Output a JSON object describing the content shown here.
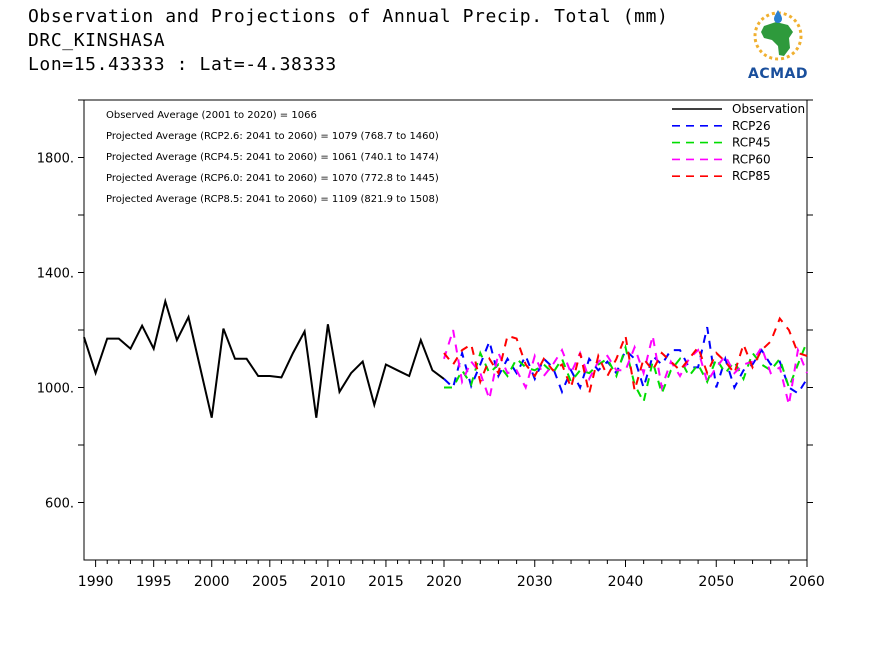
{
  "header": {
    "title": "Observation and Projections of Annual Precip. Total (mm)",
    "location": "DRC_KINSHASA",
    "coords": "Lon=15.43333 : Lat=-4.38333"
  },
  "logo": {
    "text": "ACMAD"
  },
  "annotations": [
    "Observed Average (2001 to 2020) = 1066",
    "Projected Average (RCP2.6: 2041 to 2060) = 1079 (768.7 to 1460)",
    "Projected Average (RCP4.5: 2041 to 2060) = 1061 (740.1 to 1474)",
    "Projected Average (RCP6.0: 2041 to 2060) = 1070 (772.8 to 1445)",
    "Projected Average (RCP8.5: 2041 to 2060) = 1109 (821.9 to 1508)"
  ],
  "chart_data": {
    "type": "line",
    "title": "Observation and Projections of Annual Precip. Total (mm)",
    "xlim": [
      1989,
      2060
    ],
    "ylim": [
      400,
      2000
    ],
    "xticks": [
      1990,
      1995,
      2000,
      2005,
      2010,
      2015,
      2020,
      2030,
      2040,
      2050,
      2060
    ],
    "yticks": [
      600,
      1000,
      1400,
      1800
    ],
    "ytick_labels": [
      "600.",
      "1000.",
      "1400.",
      "1800."
    ],
    "legend_position": "top-right",
    "series": [
      {
        "name": "Observation",
        "color": "#000000",
        "style": "solid",
        "x": [
          1989,
          1990,
          1991,
          1992,
          1993,
          1994,
          1995,
          1996,
          1997,
          1998,
          1999,
          2000,
          2001,
          2002,
          2003,
          2004,
          2005,
          2006,
          2007,
          2008,
          2009,
          2010,
          2011,
          2012,
          2013,
          2014,
          2015,
          2016,
          2017,
          2018,
          2019,
          2020
        ],
        "values": [
          1175,
          1050,
          1170,
          1170,
          1135,
          1215,
          1135,
          1300,
          1165,
          1245,
          1070,
          895,
          1205,
          1100,
          1100,
          1040,
          1040,
          1035,
          1120,
          1195,
          895,
          1220,
          985,
          1050,
          1090,
          940,
          1080,
          1060,
          1040,
          1165,
          1060,
          1030
        ]
      },
      {
        "name": "RCP26",
        "color": "#0000ff",
        "style": "dashed",
        "x": [
          2020,
          2021,
          2022,
          2023,
          2024,
          2025,
          2026,
          2027,
          2028,
          2029,
          2030,
          2031,
          2032,
          2033,
          2034,
          2035,
          2036,
          2037,
          2038,
          2039,
          2040,
          2041,
          2042,
          2043,
          2044,
          2045,
          2046,
          2047,
          2048,
          2049,
          2050,
          2051,
          2052,
          2053,
          2054,
          2055,
          2056,
          2057,
          2058,
          2059,
          2060
        ],
        "values": [
          1030,
          1000,
          1120,
          1005,
          1080,
          1160,
          1040,
          1100,
          1050,
          1110,
          1030,
          1100,
          1070,
          985,
          1060,
          1000,
          1100,
          1060,
          1090,
          1050,
          1130,
          1100,
          1000,
          1110,
          1080,
          1130,
          1130,
          1070,
          1070,
          1210,
          1000,
          1100,
          1000,
          1060,
          1080,
          1130,
          1080,
          1090,
          1000,
          980,
          1030
        ]
      },
      {
        "name": "RCP45",
        "color": "#00dd00",
        "style": "dashed",
        "x": [
          2020,
          2021,
          2022,
          2023,
          2024,
          2025,
          2026,
          2027,
          2028,
          2029,
          2030,
          2031,
          2032,
          2033,
          2034,
          2035,
          2036,
          2037,
          2038,
          2039,
          2040,
          2041,
          2042,
          2043,
          2044,
          2045,
          2046,
          2047,
          2048,
          2049,
          2050,
          2051,
          2052,
          2053,
          2054,
          2055,
          2056,
          2057,
          2058,
          2059,
          2060
        ],
        "values": [
          1000,
          1000,
          1060,
          1010,
          1120,
          1050,
          1080,
          1040,
          1100,
          1070,
          1060,
          1080,
          1050,
          1100,
          1020,
          1060,
          1050,
          1080,
          1100,
          1040,
          1140,
          1010,
          950,
          1090,
          980,
          1060,
          1100,
          1040,
          1080,
          1020,
          1100,
          1050,
          1090,
          1030,
          1120,
          1080,
          1060,
          1100,
          1000,
          1080,
          1160
        ]
      },
      {
        "name": "RCP60",
        "color": "#ff00ff",
        "style": "dashed",
        "x": [
          2020,
          2021,
          2022,
          2023,
          2024,
          2025,
          2026,
          2027,
          2028,
          2029,
          2030,
          2031,
          2032,
          2033,
          2034,
          2035,
          2036,
          2037,
          2038,
          2039,
          2040,
          2041,
          2042,
          2043,
          2044,
          2045,
          2046,
          2047,
          2048,
          2049,
          2050,
          2051,
          2052,
          2053,
          2054,
          2055,
          2056,
          2057,
          2058,
          2059,
          2060
        ],
        "values": [
          1100,
          1200,
          1020,
          1090,
          1050,
          960,
          1120,
          1050,
          1060,
          1000,
          1110,
          1040,
          1080,
          1130,
          1050,
          1120,
          1030,
          1090,
          1110,
          1060,
          1060,
          1140,
          1050,
          1180,
          1000,
          1090,
          1040,
          1100,
          1130,
          1020,
          1070,
          1110,
          1050,
          1080,
          1090,
          1140,
          1050,
          1070,
          940,
          1130,
          1050
        ]
      },
      {
        "name": "RCP85",
        "color": "#ff0000",
        "style": "dashed",
        "x": [
          2020,
          2021,
          2022,
          2023,
          2024,
          2025,
          2026,
          2027,
          2028,
          2029,
          2030,
          2031,
          2032,
          2033,
          2034,
          2035,
          2036,
          2037,
          2038,
          2039,
          2040,
          2041,
          2042,
          2043,
          2044,
          2045,
          2046,
          2047,
          2048,
          2049,
          2050,
          2051,
          2052,
          2053,
          2054,
          2055,
          2056,
          2057,
          2058,
          2059,
          2060
        ],
        "values": [
          1120,
          1080,
          1130,
          1150,
          1020,
          1100,
          1050,
          1180,
          1170,
          1080,
          1040,
          1100,
          1060,
          1080,
          1000,
          1120,
          980,
          1110,
          1040,
          1100,
          1180,
          990,
          1100,
          1060,
          1120,
          1090,
          1060,
          1100,
          1140,
          1050,
          1120,
          1090,
          1050,
          1150,
          1070,
          1130,
          1160,
          1240,
          1200,
          1120,
          1110
        ]
      }
    ]
  }
}
